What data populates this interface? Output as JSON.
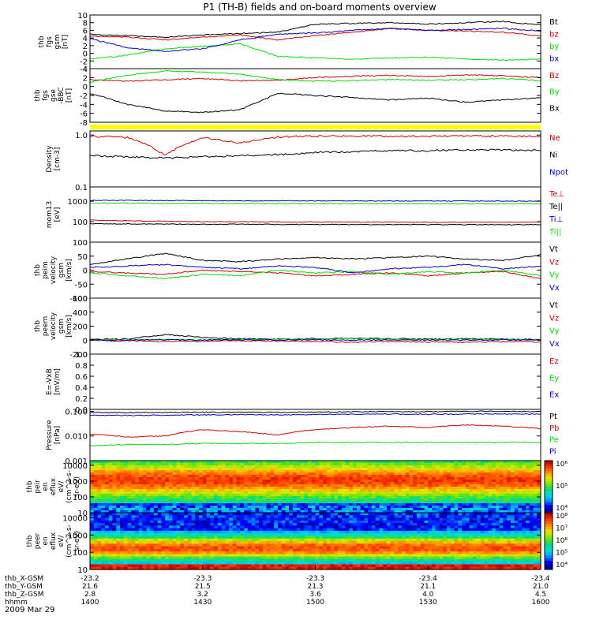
{
  "title": "P1 (TH-B) fields and on-board moments overview",
  "date": "2009 Mar 29",
  "colors": {
    "black": "#000000",
    "red": "#cc0000",
    "green": "#00dd00",
    "blue": "#0000cc",
    "yellow": "#ffff00"
  },
  "ephemeris": {
    "labels": [
      "thb_X-GSM",
      "thb_Y-GSM",
      "thb_Z-GSM",
      "hhmm"
    ],
    "rows": [
      [
        "-23.2",
        "-23.3",
        "-23.3",
        "-23.4",
        "-23.4"
      ],
      [
        "21.6",
        "21.5",
        "21.3",
        "21.1",
        "21.0"
      ],
      [
        "2.8",
        "3.2",
        "3.6",
        "4.0",
        "4.5"
      ],
      [
        "1400",
        "1430",
        "1500",
        "1530",
        "1600"
      ]
    ]
  },
  "chart_data": [
    {
      "type": "line",
      "ylabel": [
        "thb",
        "fgs",
        "gsm",
        "[nT]"
      ],
      "ylim": [
        -4,
        10
      ],
      "ticks": [
        "10",
        "8",
        "6",
        "4",
        "2",
        "0",
        "-2",
        "-4"
      ],
      "series": [
        {
          "name": "Bt",
          "color": "#000000",
          "values": [
            5,
            4.6,
            4.2,
            4.8,
            5.2,
            5.5,
            7.6,
            7.8,
            8,
            7.6,
            8,
            8.3,
            7.4
          ]
        },
        {
          "name": "bz",
          "color": "#cc0000",
          "values": [
            4.5,
            4.2,
            3.5,
            4.2,
            4.8,
            3.5,
            4.6,
            5.5,
            6.5,
            6,
            5.8,
            5.5,
            4.5
          ]
        },
        {
          "name": "by",
          "color": "#00dd00",
          "values": [
            -1.5,
            -0.5,
            1.2,
            1.8,
            2.5,
            -0.8,
            -1.2,
            -1.5,
            -1.2,
            -1,
            -1.5,
            -1.8,
            -1.5
          ]
        },
        {
          "name": "bx",
          "color": "#0000cc",
          "values": [
            3.8,
            1.5,
            0.5,
            1.2,
            3.5,
            5,
            5.3,
            6,
            6.5,
            6,
            6.2,
            6.5,
            5.8
          ]
        }
      ]
    },
    {
      "type": "line",
      "ylabel": [
        "thb",
        "fgs",
        "gse",
        "-BBC",
        "[nT]"
      ],
      "ylim": [
        -8,
        4
      ],
      "ticks": [
        "4",
        "2",
        "0",
        "-2",
        "-4",
        "-6",
        "-8"
      ],
      "series": [
        {
          "name": "Bz",
          "color": "#cc0000",
          "values": [
            1.5,
            1.2,
            1.5,
            1.8,
            1.3,
            1.4,
            2,
            2.3,
            2.5,
            2.2,
            2.6,
            2.4,
            2
          ]
        },
        {
          "name": "By",
          "color": "#00dd00",
          "values": [
            1,
            2.5,
            3.5,
            3.2,
            2.8,
            1.5,
            1.2,
            1.3,
            1.6,
            1.4,
            1.5,
            1.8,
            1.3
          ]
        },
        {
          "name": "Bx",
          "color": "#000000",
          "values": [
            -1.5,
            -4,
            -5.5,
            -5.8,
            -5.2,
            -1.5,
            -2,
            -2.5,
            -3,
            -2.6,
            -3.5,
            -3,
            -2.5
          ]
        }
      ]
    },
    {
      "type": "line",
      "ylabel": [
        "Density",
        "[cm-3]"
      ],
      "yscale": "log",
      "ylim": [
        0.1,
        1.2
      ],
      "ticks": [
        "1.0",
        "0.1"
      ],
      "series": [
        {
          "name": "Ne",
          "color": "#cc0000",
          "values": [
            0.95,
            0.9,
            0.4,
            0.9,
            0.7,
            0.92,
            0.95,
            0.96,
            0.95,
            0.95,
            0.96,
            0.95,
            0.95
          ]
        },
        {
          "name": "Ni",
          "color": "#000000",
          "values": [
            0.4,
            0.38,
            0.36,
            0.38,
            0.4,
            0.42,
            0.46,
            0.48,
            0.5,
            0.5,
            0.52,
            0.52,
            0.5
          ]
        },
        {
          "name": "Npot",
          "color": "#0000cc",
          "values": []
        }
      ]
    },
    {
      "type": "line",
      "ylabel": [
        "mom13",
        "[eV]"
      ],
      "yscale": "log",
      "ylim": [
        10,
        5000
      ],
      "ticks": [
        "1000",
        "100"
      ],
      "series": [
        {
          "name": "Te⊥",
          "color": "#cc0000",
          "values": [
            120,
            110,
            105,
            100,
            100,
            98,
            97,
            96,
            95,
            95,
            95,
            95,
            95
          ]
        },
        {
          "name": "Te||",
          "color": "#000000",
          "values": [
            80,
            78,
            76,
            75,
            75,
            74,
            73,
            73,
            72,
            72,
            72,
            72,
            72
          ]
        },
        {
          "name": "Ti⊥",
          "color": "#0000cc",
          "values": [
            1100,
            1100,
            1080,
            1060,
            1050,
            1050,
            1040,
            1040,
            1030,
            1030,
            1030,
            1020,
            1020
          ]
        },
        {
          "name": "Ti||",
          "color": "#00dd00",
          "values": [
            800,
            800,
            790,
            780,
            780,
            770,
            770,
            760,
            760,
            760,
            750,
            750,
            750
          ]
        }
      ]
    },
    {
      "type": "line",
      "ylabel": [
        "thb",
        "peim",
        "velocity",
        "gsm",
        "[km/s]"
      ],
      "ylim": [
        -100,
        100
      ],
      "ticks": [
        "100",
        "50",
        "0",
        "-50",
        "-100"
      ],
      "series": [
        {
          "name": "Vt",
          "color": "#000000",
          "values": [
            20,
            40,
            60,
            35,
            30,
            40,
            45,
            40,
            45,
            50,
            40,
            35,
            55
          ]
        },
        {
          "name": "Vz",
          "color": "#cc0000",
          "values": [
            -5,
            -10,
            -15,
            0,
            -5,
            -10,
            -20,
            -15,
            -10,
            -20,
            -10,
            -5,
            -30
          ]
        },
        {
          "name": "Vy",
          "color": "#00dd00",
          "values": [
            -10,
            -20,
            -30,
            -15,
            -20,
            0,
            -10,
            -5,
            -15,
            -5,
            -10,
            0,
            -20
          ]
        },
        {
          "name": "Vx",
          "color": "#0000cc",
          "values": [
            10,
            15,
            20,
            10,
            5,
            15,
            10,
            -10,
            5,
            10,
            20,
            5,
            15
          ]
        }
      ]
    },
    {
      "type": "line",
      "ylabel": [
        "thb",
        "peem",
        "velocity",
        "gsm",
        "[km/s]"
      ],
      "ylim": [
        -200,
        600
      ],
      "ticks": [
        "600",
        "400",
        "200",
        "0",
        "-200"
      ],
      "series": [
        {
          "name": "Vt",
          "color": "#000000",
          "values": [
            10,
            15,
            80,
            40,
            20,
            15,
            20,
            25,
            20,
            15,
            20,
            15,
            10
          ]
        },
        {
          "name": "Vz",
          "color": "#cc0000",
          "values": [
            -5,
            -10,
            -20,
            -15,
            -10,
            -15,
            -20,
            -30,
            -20,
            -25,
            -30,
            -20,
            -25
          ]
        },
        {
          "name": "Vy",
          "color": "#00dd00",
          "values": [
            0,
            5,
            10,
            5,
            10,
            15,
            10,
            20,
            15,
            10,
            15,
            10,
            5
          ]
        },
        {
          "name": "Vx",
          "color": "#0000cc",
          "values": [
            0,
            0,
            5,
            0,
            5,
            0,
            5,
            0,
            5,
            0,
            0,
            5,
            0
          ]
        }
      ]
    },
    {
      "type": "line",
      "ylabel": [
        "E=-VxB",
        "[mV/m]"
      ],
      "ylim": [
        0,
        1
      ],
      "ticks": [
        "1.0",
        "0.8",
        "0.6",
        "0.4",
        "0.2",
        "0.0"
      ],
      "series": [
        {
          "name": "Ez",
          "color": "#cc0000",
          "values": []
        },
        {
          "name": "Ey",
          "color": "#00dd00",
          "values": []
        },
        {
          "name": "Ex",
          "color": "#0000cc",
          "values": []
        }
      ]
    },
    {
      "type": "line",
      "ylabel": [
        "Pressure",
        "[nPa]"
      ],
      "yscale": "log",
      "ylim": [
        0.001,
        0.12
      ],
      "ticks": [
        "0.100",
        "0.010",
        "0.001"
      ],
      "series": [
        {
          "name": "Pt",
          "color": "#000000",
          "values": [
            0.09,
            0.088,
            0.09,
            0.091,
            0.092,
            0.09,
            0.094,
            0.096,
            0.098,
            0.097,
            0.1,
            0.099,
            0.098
          ]
        },
        {
          "name": "Pb",
          "color": "#cc0000",
          "values": [
            0.012,
            0.009,
            0.01,
            0.018,
            0.015,
            0.011,
            0.018,
            0.022,
            0.025,
            0.022,
            0.028,
            0.025,
            0.02
          ]
        },
        {
          "name": "Pe",
          "color": "#00dd00",
          "values": [
            0.004,
            0.0045,
            0.0045,
            0.005,
            0.005,
            0.005,
            0.0055,
            0.0055,
            0.0055,
            0.0055,
            0.0055,
            0.0055,
            0.0055
          ]
        },
        {
          "name": "Pi",
          "color": "#0000cc",
          "values": [
            0.07,
            0.068,
            0.07,
            0.072,
            0.074,
            0.072,
            0.075,
            0.076,
            0.078,
            0.076,
            0.078,
            0.078,
            0.077
          ]
        }
      ]
    },
    {
      "type": "heatmap",
      "ylabel": [
        "thb",
        "peir",
        "en",
        "eflux",
        "eV/",
        "(cm^2-s-",
        "sr-eV)"
      ],
      "yscale": "log",
      "ylim": [
        10,
        20000
      ],
      "ticks": [
        "10000",
        "1000",
        "100",
        "10"
      ],
      "colorbar": [
        "10⁶",
        "10⁵",
        "10⁴"
      ]
    },
    {
      "type": "heatmap",
      "ylabel": [
        "thb",
        "peer",
        "en",
        "eflux",
        "eV/",
        "(cm^2-s-",
        "sr-eV)"
      ],
      "yscale": "log",
      "ylim": [
        10,
        20000
      ],
      "ticks": [
        "10000",
        "1000",
        "100",
        "10"
      ],
      "colorbar": [
        "10⁸",
        "10⁷",
        "10⁶",
        "10⁵",
        "10⁴"
      ]
    }
  ]
}
